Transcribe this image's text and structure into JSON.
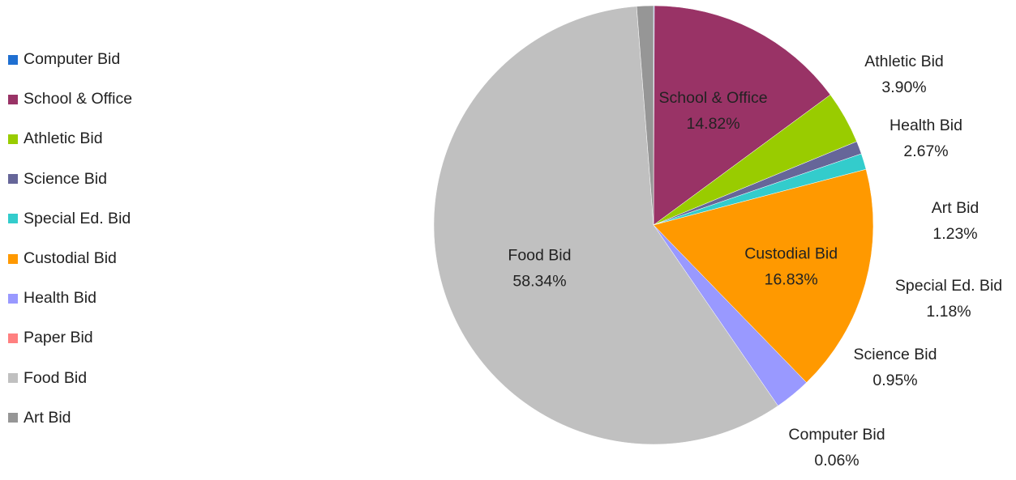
{
  "chart_data": {
    "type": "pie",
    "title": "",
    "legend_position": "left",
    "slices": [
      {
        "name": "Computer Bid",
        "value": 0.06,
        "label": "0.06%",
        "color": "#1f6fd1"
      },
      {
        "name": "School & Office",
        "value": 14.82,
        "label": "14.82%",
        "color": "#993366"
      },
      {
        "name": "Athletic Bid",
        "value": 3.9,
        "label": "3.90%",
        "color": "#99cc00"
      },
      {
        "name": "Science Bid",
        "value": 0.95,
        "label": "0.95%",
        "color": "#666699"
      },
      {
        "name": "Special Ed. Bid",
        "value": 1.18,
        "label": "1.18%",
        "color": "#33cccc"
      },
      {
        "name": "Custodial Bid",
        "value": 16.83,
        "label": "16.83%",
        "color": "#ff9900"
      },
      {
        "name": "Health Bid",
        "value": 2.67,
        "label": "2.67%",
        "color": "#9999ff"
      },
      {
        "name": "Paper Bid",
        "value": 0.0,
        "label": "",
        "color": "#ff8080"
      },
      {
        "name": "Food Bid",
        "value": 58.34,
        "label": "58.34%",
        "color": "#c0c0c0"
      },
      {
        "name": "Art Bid",
        "value": 1.23,
        "label": "1.23%",
        "color": "#969696"
      }
    ]
  }
}
